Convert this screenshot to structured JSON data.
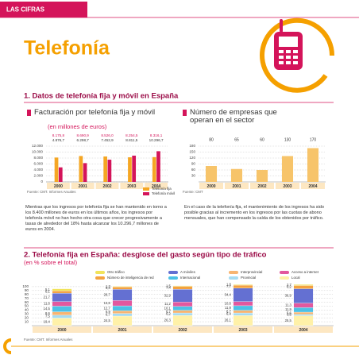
{
  "page": {
    "header": "LAS CIFRAS",
    "title": "Telefonía",
    "section1": "1. Datos de telefonía fija y móvil en España",
    "paragraphs": [
      "Mientras que los ingresos por telefonía fija se han mantenido en torno a los 8.400 millones de euros en los últimos años, los ingresos por telefonía móvil no han hecho otra cosa que crecer progresivamente a tasas de alrededor del 18% hasta alcanzar los 10.296,7 millones de euros en 2004.",
      "En el caso de la telefonía fija, el mantenimiento de los ingresos ha sido posible gracias al incremento en los ingresos por las cuotas de abono mensuales, que han compensado la caída de los obtenidos por tráfico."
    ],
    "section2": "2. Telefonía fija en España: desglose del gasto según tipo de tráfico",
    "section2_subtitle": "(en % sobre el total)"
  },
  "chart_data": [
    {
      "type": "bar",
      "title": "Facturación por telefonía fija y móvil",
      "subtitle": "(en millones de euros)",
      "source": "Fuente: CMT. Informes Anuales",
      "categories": [
        "2000",
        "2001",
        "2002",
        "2003",
        "2004"
      ],
      "series": [
        {
          "name": "Telefonía fija",
          "color": "#f5a623",
          "values": [
            8175.8,
            8690.9,
            8526.0,
            8254.5,
            8316.1
          ],
          "value_labels": [
            "8.175,8",
            "8.690,9",
            "8.526,0",
            "8.254,5",
            "8.316,1"
          ]
        },
        {
          "name": "Telefonía móvil",
          "color": "#d4145a",
          "values": [
            4876.7,
            6298.7,
            7452.9,
            8811.5,
            10296.7
          ],
          "value_labels": [
            "4.876,7",
            "6.298,7",
            "7.452,9",
            "8.811,5",
            "10.296,7"
          ]
        }
      ],
      "ylim": [
        0,
        12000
      ],
      "yticks": [
        0,
        {
          "value": 2000,
          "label": "2.000"
        },
        {
          "value": 4000,
          "label": "4.000"
        },
        {
          "value": 6000,
          "label": "6.000"
        },
        {
          "value": 8000,
          "label": "8.000"
        },
        {
          "value": 10000,
          "label": "10.000"
        },
        {
          "value": 12000,
          "label": "12.000"
        }
      ],
      "grid": true
    },
    {
      "type": "bar",
      "title": "Número de empresas que operan en el sector",
      "source": "Fuente: CMT",
      "categories": [
        "2000",
        "2001",
        "2002",
        "2003",
        "2004"
      ],
      "values": [
        80,
        65,
        60,
        130,
        170
      ],
      "color": "#f7c46a",
      "ylim": [
        0,
        180
      ],
      "yticks": [
        30,
        60,
        90,
        120,
        150,
        180
      ],
      "grid": true
    },
    {
      "type": "stacked_bar",
      "source": "Fuente: CMT. Informes Anuales",
      "categories": [
        "2000",
        "2001",
        "2002",
        "2003",
        "2004"
      ],
      "series": [
        {
          "name": "Local",
          "color": "#fff1a8",
          "values": [
            19.4,
            24.5,
            26.3,
            26.1,
            25.5
          ],
          "value_labels": [
            "19,4",
            "24,5",
            "26,3",
            "26,1",
            "25,5"
          ]
        },
        {
          "name": "Provincial",
          "color": "#a6dcf2",
          "values": [
            7.5,
            6.7,
            6.2,
            6.4,
            3.5
          ],
          "value_labels": [
            "7,5",
            "6,7",
            "6,2",
            "6,4",
            "3,5"
          ]
        },
        {
          "name": "Interprovincial",
          "color": "#f7b572",
          "values": [
            8.6,
            6.9,
            6.7,
            6.7,
            5.6
          ],
          "value_labels": [
            "8,6",
            "6,9",
            "6,7",
            "6,7",
            "5,6"
          ]
        },
        {
          "name": "Internacional",
          "color": "#4cc1e6",
          "values": [
            14.5,
            12.7,
            10.1,
            11.9,
            11.9
          ],
          "value_labels": [
            "14,5",
            "12,7",
            "10,1",
            "11,9",
            "11,9"
          ]
        },
        {
          "name": "Acceso a internet",
          "color": "#e2589e",
          "values": [
            11.6,
            13.6,
            11.2,
            10.6,
            11.3
          ],
          "value_labels": [
            "11,6",
            "13,6",
            "11,2",
            "10,6",
            "11,3"
          ]
        },
        {
          "name": "A móviles",
          "color": "#6470d2",
          "values": [
            21.7,
            28.7,
            32.9,
            34.4,
            36.9
          ],
          "value_labels": [
            "21,7",
            "28,7",
            "32,9",
            "34,4",
            "36,9"
          ]
        },
        {
          "name": "Número de inteligencia de red",
          "color": "#f4a23f",
          "values": [
            6.1,
            6.4,
            7.4,
            7.7,
            8.2
          ],
          "value_labels": [
            "6,1",
            "6,4",
            "7,4",
            "7,7",
            "8,2"
          ]
        },
        {
          "name": "Otro tráfico",
          "color": "#f1e35a",
          "values": [
            5.1,
            1.3,
            1.5,
            1.8,
            2.7
          ],
          "value_labels": [
            "5,1",
            "1,3",
            "1,5",
            "1,8",
            "2,7"
          ]
        }
      ],
      "ylim": [
        0,
        110
      ],
      "yticks": [
        10,
        20,
        30,
        40,
        50,
        60,
        70,
        80,
        90,
        100
      ],
      "grid": true
    }
  ]
}
